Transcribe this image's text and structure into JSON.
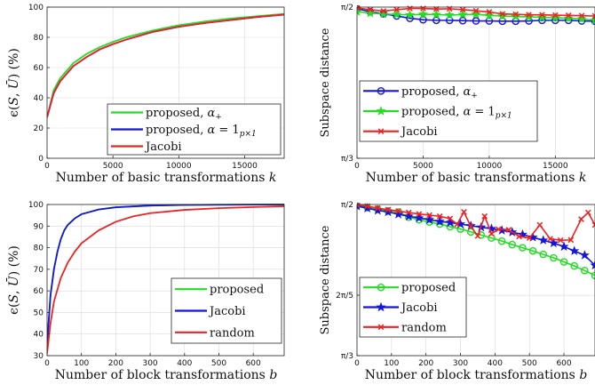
{
  "chart_data": [
    {
      "type": "line",
      "xlabel": "Number of basic transformations k",
      "ylabel": "ε(S, Ū) (%)",
      "xlim": [
        0,
        18000
      ],
      "ylim": [
        0,
        100
      ],
      "xticks": [
        "0",
        "5000",
        "10000",
        "15000"
      ],
      "yticks": [
        "0",
        "20",
        "40",
        "60",
        "80",
        "100"
      ],
      "grid": true,
      "legend_position": "bottom-right",
      "legend": [
        "proposed, α+",
        "proposed, α = 1p×1",
        "Jacobi"
      ],
      "series": [
        {
          "name": "proposed, α+",
          "color": "#22dd22",
          "x": [
            0,
            500,
            1000,
            2000,
            3000,
            4000,
            5000,
            6000,
            8000,
            10000,
            12000,
            14000,
            16000,
            18000
          ],
          "y": [
            27,
            45,
            53,
            63,
            69,
            73.5,
            77,
            80,
            84.5,
            88,
            90.5,
            92.5,
            94,
            95.5
          ]
        },
        {
          "name": "proposed, α = 1p×1",
          "color": "#1515dd",
          "x": [
            0,
            500,
            1000,
            2000,
            3000,
            4000,
            5000,
            6000,
            8000,
            10000,
            12000,
            14000,
            16000,
            18000
          ],
          "y": [
            27,
            43,
            51,
            61,
            67,
            72,
            75.5,
            78.5,
            83.5,
            87,
            89.5,
            91.5,
            93.5,
            95
          ]
        },
        {
          "name": "Jacobi",
          "color": "#ee2222",
          "x": [
            0,
            500,
            1000,
            2000,
            3000,
            4000,
            5000,
            6000,
            8000,
            10000,
            12000,
            14000,
            16000,
            18000
          ],
          "y": [
            27,
            43,
            51,
            61,
            67,
            72,
            75.5,
            78.5,
            83.5,
            87,
            89.5,
            91.5,
            93.5,
            95
          ]
        }
      ]
    },
    {
      "type": "line",
      "xlabel": "Number of basic transformations k",
      "ylabel": "Subspace distance",
      "xlim": [
        0,
        18000
      ],
      "ylim": [
        1.0472,
        1.5708
      ],
      "xticks": [
        "0",
        "5000",
        "10000",
        "15000"
      ],
      "yticks": [
        "π/3",
        "π/2"
      ],
      "grid": true,
      "legend_position": "bottom-left",
      "legend": [
        "proposed, α+",
        "proposed, α = 1p×1",
        "Jacobi"
      ],
      "series": [
        {
          "name": "proposed, α+",
          "color": "#1515dd",
          "marker": "circle",
          "x": [
            0,
            1000,
            2000,
            3000,
            4000,
            5000,
            6000,
            7000,
            8000,
            9000,
            10000,
            11000,
            12000,
            13000,
            14000,
            15000,
            16000,
            17000,
            18000
          ],
          "y": [
            1.565,
            1.555,
            1.548,
            1.54,
            1.532,
            1.527,
            1.525,
            1.525,
            1.524,
            1.523,
            1.523,
            1.522,
            1.522,
            1.523,
            1.525,
            1.525,
            1.525,
            1.523,
            1.522
          ]
        },
        {
          "name": "proposed, α = 1p×1",
          "color": "#22dd22",
          "marker": "star",
          "x": [
            0,
            1000,
            2000,
            3000,
            4000,
            5000,
            6000,
            7000,
            8000,
            9000,
            10000,
            11000,
            12000,
            13000,
            14000,
            15000,
            16000,
            17000,
            18000
          ],
          "y": [
            1.555,
            1.55,
            1.547,
            1.545,
            1.544,
            1.546,
            1.545,
            1.543,
            1.545,
            1.546,
            1.542,
            1.54,
            1.538,
            1.537,
            1.535,
            1.534,
            1.532,
            1.53,
            1.525
          ]
        },
        {
          "name": "Jacobi",
          "color": "#ee2222",
          "marker": "x",
          "x": [
            0,
            1000,
            2000,
            3000,
            4000,
            5000,
            6000,
            7000,
            8000,
            9000,
            10000,
            11000,
            12000,
            13000,
            14000,
            15000,
            16000,
            17000,
            18000
          ],
          "y": [
            1.568,
            1.562,
            1.557,
            1.562,
            1.566,
            1.566,
            1.564,
            1.565,
            1.562,
            1.558,
            1.554,
            1.547,
            1.546,
            1.544,
            1.544,
            1.543,
            1.542,
            1.541,
            1.54
          ]
        }
      ]
    },
    {
      "type": "line",
      "xlabel": "Number of block transformations b",
      "ylabel": "ε(S, Ū) (%)",
      "xlim": [
        0,
        690
      ],
      "ylim": [
        30,
        100
      ],
      "xticks": [
        "0",
        "100",
        "200",
        "300",
        "400",
        "500",
        "600"
      ],
      "yticks": [
        "30",
        "40",
        "50",
        "60",
        "70",
        "80",
        "90",
        "100"
      ],
      "grid": true,
      "legend_position": "bottom-right",
      "legend": [
        "proposed",
        "Jacobi",
        "random"
      ],
      "series": [
        {
          "name": "proposed",
          "color": "#22dd22",
          "x": [
            0,
            10,
            20,
            30,
            40,
            50,
            60,
            80,
            100,
            150,
            200,
            300,
            400,
            500,
            600,
            690
          ],
          "y": [
            35,
            58,
            70,
            78,
            84,
            88,
            90.5,
            93.5,
            95.5,
            97.7,
            98.7,
            99.5,
            99.8,
            99.9,
            99.95,
            100
          ]
        },
        {
          "name": "Jacobi",
          "color": "#1515dd",
          "x": [
            0,
            10,
            20,
            30,
            40,
            50,
            60,
            80,
            100,
            150,
            200,
            300,
            400,
            500,
            600,
            690
          ],
          "y": [
            35,
            58,
            70,
            78,
            84,
            88,
            90.5,
            93.5,
            95.5,
            97.7,
            98.7,
            99.5,
            99.8,
            99.9,
            99.95,
            100
          ]
        },
        {
          "name": "random",
          "color": "#ee2222",
          "x": [
            0,
            10,
            20,
            40,
            60,
            80,
            100,
            150,
            200,
            250,
            300,
            400,
            500,
            600,
            690
          ],
          "y": [
            31,
            45,
            55,
            66,
            73,
            78,
            82,
            88,
            92,
            94.5,
            96,
            97.5,
            98.3,
            98.8,
            99.2
          ]
        }
      ]
    },
    {
      "type": "line",
      "xlabel": "Number of block transformations b",
      "ylabel": "Subspace distance",
      "xlim": [
        0,
        690
      ],
      "ylim": [
        1.0472,
        1.5708
      ],
      "xticks": [
        "0",
        "100",
        "200",
        "300",
        "400",
        "500",
        "600"
      ],
      "yticks": [
        "π/3",
        "2π/5",
        "π/2"
      ],
      "grid": true,
      "legend_position": "bottom-left",
      "legend": [
        "proposed",
        "Jacobi",
        "random"
      ],
      "series": [
        {
          "name": "proposed",
          "color": "#22dd22",
          "marker": "circle",
          "x": [
            0,
            30,
            60,
            90,
            120,
            150,
            180,
            210,
            240,
            270,
            300,
            330,
            360,
            390,
            420,
            450,
            480,
            510,
            540,
            570,
            600,
            630,
            660,
            690
          ],
          "y": [
            1.568,
            1.56,
            1.555,
            1.548,
            1.545,
            1.527,
            1.518,
            1.51,
            1.503,
            1.494,
            1.486,
            1.476,
            1.465,
            1.455,
            1.444,
            1.432,
            1.421,
            1.41,
            1.398,
            1.386,
            1.372,
            1.358,
            1.342,
            1.325
          ]
        },
        {
          "name": "Jacobi",
          "color": "#1515dd",
          "marker": "star",
          "x": [
            0,
            30,
            60,
            90,
            120,
            150,
            180,
            210,
            240,
            270,
            300,
            330,
            360,
            390,
            420,
            450,
            480,
            510,
            540,
            570,
            600,
            630,
            660,
            690
          ],
          "y": [
            1.565,
            1.558,
            1.55,
            1.545,
            1.537,
            1.53,
            1.524,
            1.518,
            1.512,
            1.508,
            1.503,
            1.497,
            1.492,
            1.487,
            1.481,
            1.475,
            1.467,
            1.457,
            1.447,
            1.437,
            1.425,
            1.41,
            1.395,
            1.36
          ]
        },
        {
          "name": "random",
          "color": "#ee2222",
          "marker": "x",
          "x": [
            0,
            30,
            60,
            90,
            120,
            150,
            180,
            210,
            240,
            270,
            290,
            310,
            330,
            350,
            370,
            390,
            410,
            440,
            470,
            500,
            530,
            560,
            590,
            620,
            650,
            670,
            690
          ],
          "y": [
            1.57,
            1.565,
            1.558,
            1.553,
            1.548,
            1.543,
            1.538,
            1.534,
            1.53,
            1.522,
            1.502,
            1.545,
            1.495,
            1.462,
            1.53,
            1.47,
            1.485,
            1.483,
            1.46,
            1.455,
            1.5,
            1.452,
            1.447,
            1.448,
            1.52,
            1.543,
            1.5
          ]
        }
      ]
    }
  ]
}
